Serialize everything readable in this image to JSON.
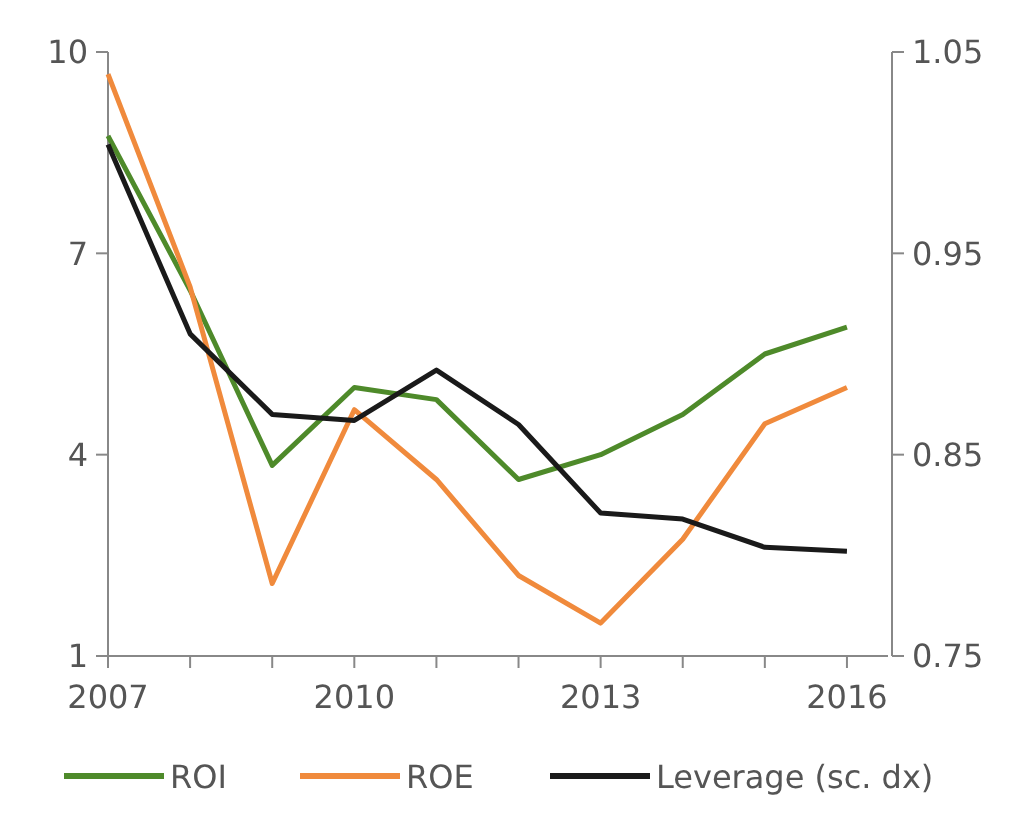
{
  "chart_data": {
    "type": "line",
    "x": [
      2007,
      2008,
      2009,
      2010,
      2011,
      2012,
      2013,
      2014,
      2015,
      2016
    ],
    "series": [
      {
        "name": "ROI",
        "color": "#4e8a2a",
        "values": [
          8.75,
          6.45,
          3.84,
          5.0,
          4.82,
          3.63,
          4.0,
          4.6,
          5.5,
          5.9
        ]
      },
      {
        "name": "ROE",
        "color": "#f08a3c",
        "values": [
          9.67,
          6.5,
          2.08,
          4.67,
          3.63,
          2.2,
          1.49,
          2.74,
          4.46,
          5.0
        ]
      },
      {
        "name": "Leverage (sc. dx)",
        "color": "#1a1a1a",
        "axis": "y2",
        "values": [
          1.004,
          0.91,
          0.87,
          0.867,
          0.892,
          0.865,
          0.821,
          0.818,
          0.804,
          0.802
        ]
      }
    ],
    "xlim": [
      2007,
      2016.5
    ],
    "xticks": [
      2007,
      {
        "value": 2008,
        "label": null
      },
      {
        "value": 2009,
        "label": null
      },
      2010,
      {
        "value": 2011,
        "label": null
      },
      {
        "value": 2012,
        "label": null
      },
      2013,
      {
        "value": 2014,
        "label": null
      },
      {
        "value": 2015,
        "label": null
      },
      2016
    ],
    "ylim": [
      1,
      10
    ],
    "yticks": [
      1,
      4,
      7,
      10
    ],
    "y2lim": [
      0.75,
      1.05
    ],
    "y2ticks": [
      0.75,
      0.85,
      0.95,
      1.05
    ],
    "legend": "bottom",
    "grid": false,
    "marker": "none",
    "line_style": "solid"
  }
}
